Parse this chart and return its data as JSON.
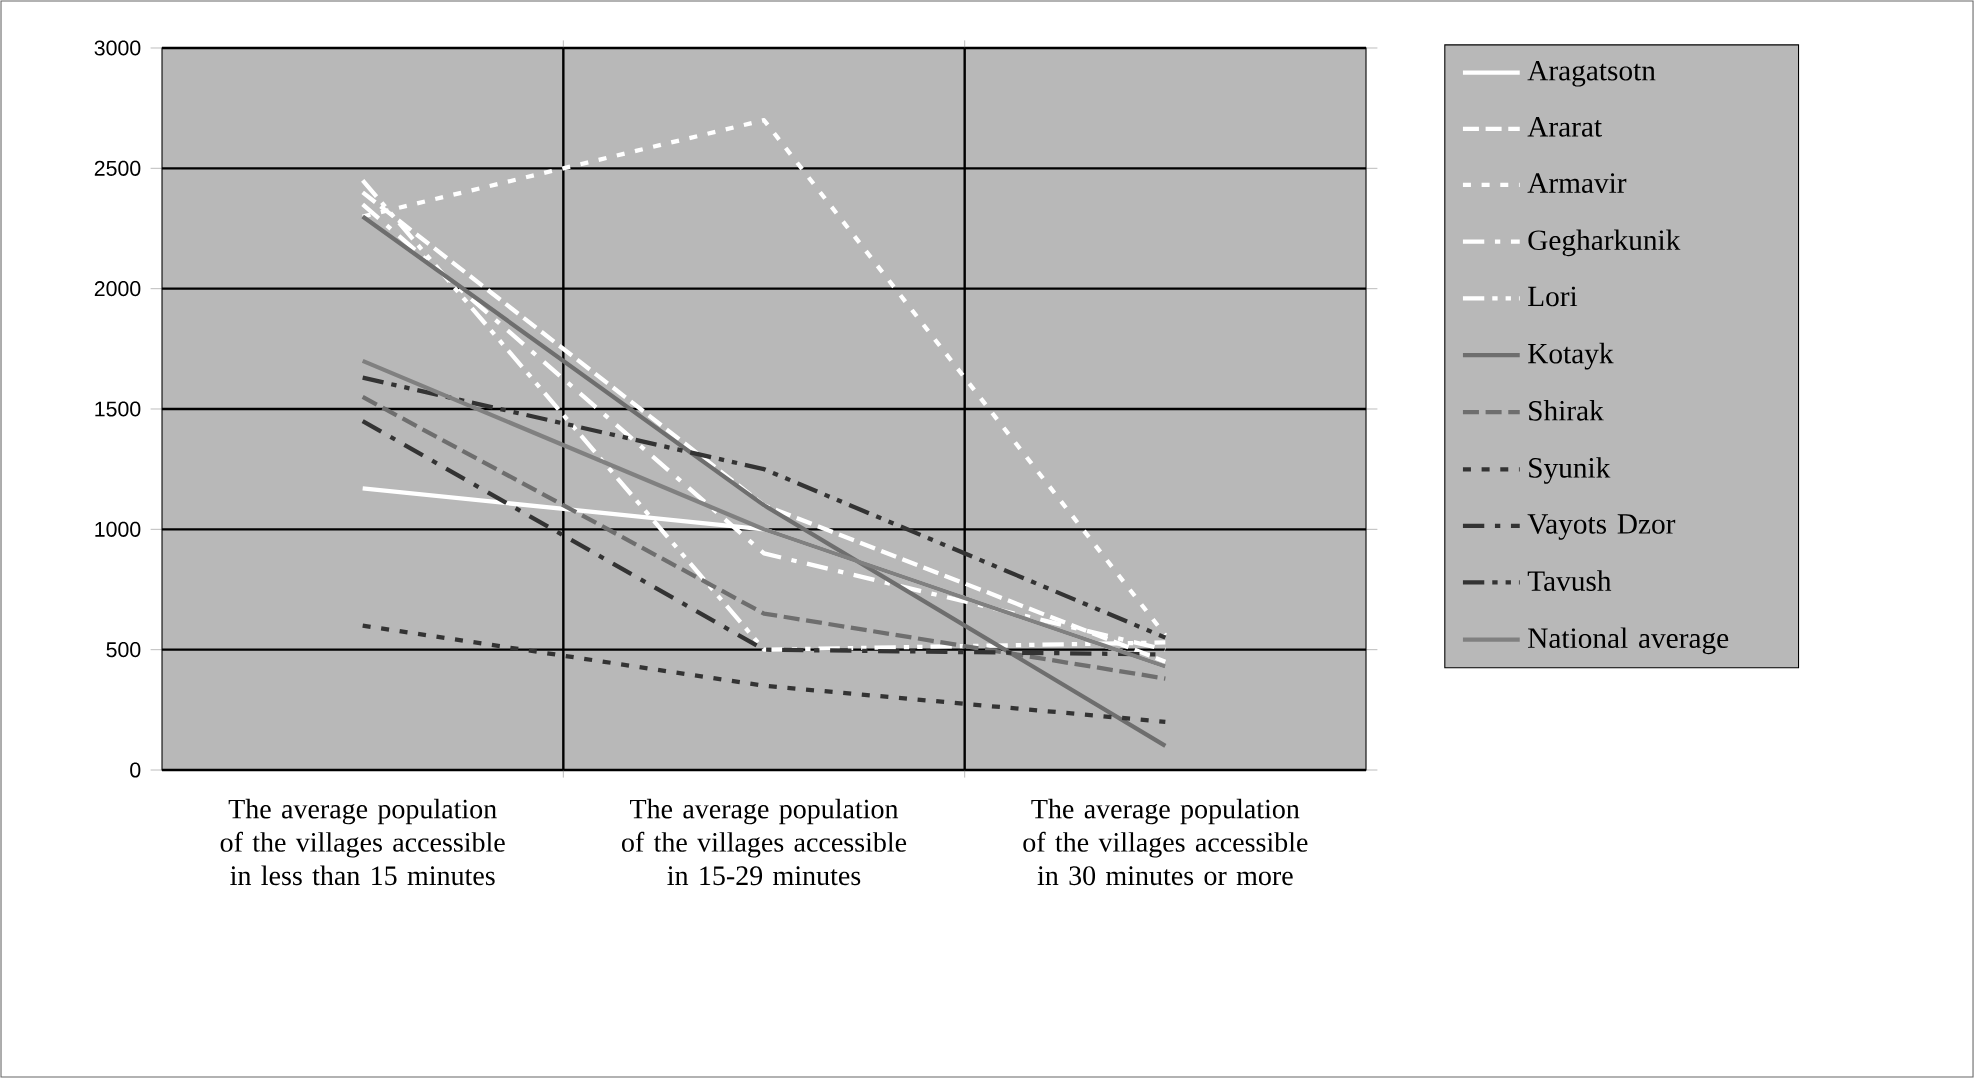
{
  "chart_data": {
    "type": "line",
    "categories": [
      "The average population of the villages accessible in less than 15 minutes",
      "The average population of the villages accessible in 15-29 minutes",
      "The average population of the villages accessible in 30 minutes or more"
    ],
    "series": [
      {
        "name": "Aragatsotn",
        "color": "#ffffff",
        "line_style": "solid",
        "values": [
          1170,
          1000,
          430
        ]
      },
      {
        "name": "Ararat",
        "color": "#ffffff",
        "line_style": "dashed",
        "values": [
          2400,
          1100,
          450
        ]
      },
      {
        "name": "Armavir",
        "color": "#ffffff",
        "line_style": "dotted",
        "values": [
          2300,
          2700,
          560
        ]
      },
      {
        "name": "Gegharkunik",
        "color": "#ffffff",
        "line_style": "dashdotted",
        "values": [
          2350,
          900,
          500
        ]
      },
      {
        "name": "Lori",
        "color": "#ffffff",
        "line_style": "dashdotdotted",
        "values": [
          2450,
          500,
          530
        ]
      },
      {
        "name": "Kotayk",
        "color": "#6e6e6e",
        "line_style": "solid",
        "values": [
          2300,
          1100,
          100
        ]
      },
      {
        "name": "Shirak",
        "color": "#6e6e6e",
        "line_style": "dashed",
        "values": [
          1550,
          650,
          380
        ]
      },
      {
        "name": "Syunik",
        "color": "#333333",
        "line_style": "dotted",
        "values": [
          600,
          350,
          200
        ]
      },
      {
        "name": "Vayots Dzor",
        "color": "#333333",
        "line_style": "dashdotted",
        "values": [
          1450,
          500,
          480
        ]
      },
      {
        "name": "Tavush",
        "color": "#333333",
        "line_style": "dashdotdotted",
        "values": [
          1630,
          1250,
          550
        ]
      },
      {
        "name": "National average",
        "color": "#808080",
        "line_style": "solid",
        "values": [
          1700,
          1000,
          430
        ]
      }
    ],
    "ylim": [
      0,
      3000
    ],
    "yticks": [
      0,
      500,
      1000,
      1500,
      2000,
      2500,
      3000
    ],
    "grid": true,
    "legend": "right",
    "marker": "none"
  }
}
